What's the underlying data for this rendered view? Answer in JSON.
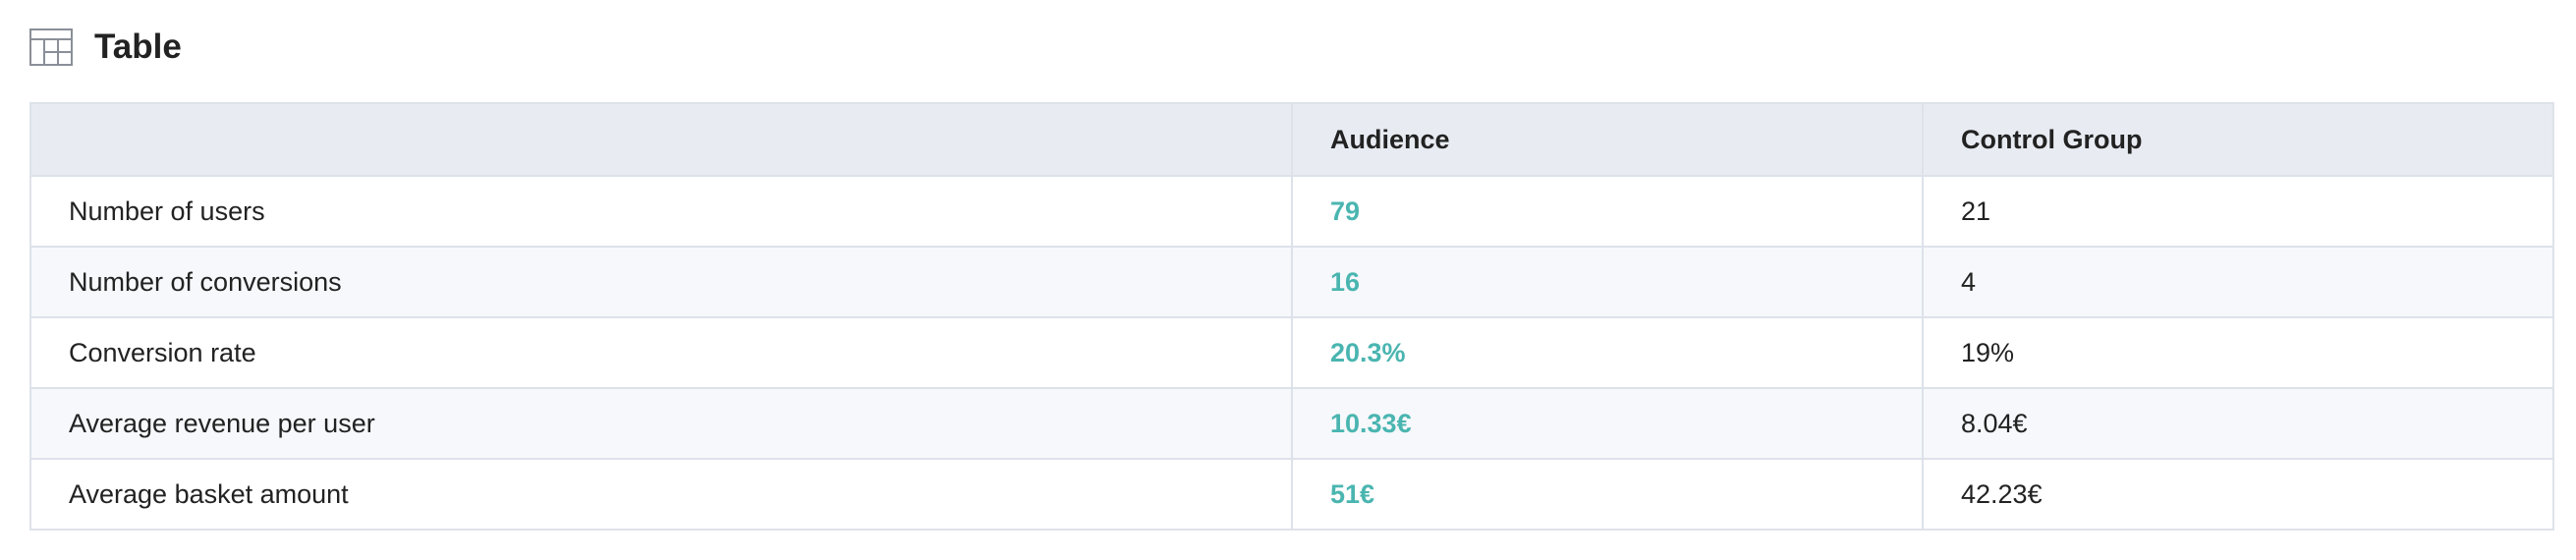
{
  "header": {
    "title": "Table"
  },
  "table": {
    "columns": [
      "Audience",
      "Control Group"
    ],
    "rows": [
      {
        "label": "Number of users",
        "values": [
          "79",
          "21"
        ]
      },
      {
        "label": "Number of conversions",
        "values": [
          "16",
          "4"
        ]
      },
      {
        "label": "Conversion rate",
        "values": [
          "20.3%",
          "19%"
        ]
      },
      {
        "label": "Average revenue per user",
        "values": [
          "10.33€",
          "8.04€"
        ]
      },
      {
        "label": "Average basket amount",
        "values": [
          "51€",
          "42.23€"
        ]
      }
    ]
  }
}
